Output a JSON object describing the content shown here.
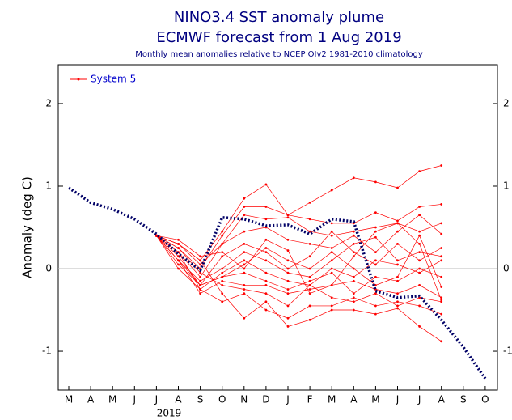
{
  "chart_data": {
    "type": "plume",
    "title": "NINO3.4 SST anomaly plume",
    "subtitle": "ECMWF forecast from 1 Aug 2019",
    "note": "Monthly mean anomalies relative to NCEP OIv2 1981-2010 climatology",
    "y_label": "Anomaly (deg C)",
    "year_label": "2019",
    "categories": [
      "M",
      "A",
      "M",
      "J",
      "J",
      "A",
      "S",
      "O",
      "N",
      "D",
      "J",
      "F",
      "M",
      "A",
      "M",
      "J",
      "J",
      "A",
      "S",
      "O"
    ],
    "ylim": [
      -1.47,
      2.47
    ],
    "yticks": [
      -1,
      0,
      1,
      2
    ],
    "legend": "top-left",
    "series": [
      {
        "color": "#000066",
        "values": [
          0.98,
          0.8,
          0.72,
          0.6,
          0.42,
          0.18,
          -0.02,
          0.62,
          0.6,
          0.52,
          0.53,
          0.42,
          0.6,
          0.57,
          -0.27,
          -0.35,
          -0.33,
          -0.62,
          -0.95,
          -1.33
        ]
      }
    ],
    "ensemble": {
      "name": "System 5",
      "color": "#ff0000",
      "members": [
        [
          null,
          null,
          null,
          null,
          0.4,
          0.3,
          0.1,
          0.45,
          0.85,
          1.02,
          0.65,
          0.8,
          0.95,
          1.1,
          1.05,
          0.98,
          1.18,
          1.25,
          null,
          null
        ],
        [
          null,
          null,
          null,
          null,
          0.4,
          0.25,
          0.0,
          0.4,
          0.75,
          0.75,
          0.65,
          0.6,
          0.55,
          0.55,
          0.68,
          0.58,
          0.75,
          0.78,
          null,
          null
        ],
        [
          null,
          null,
          null,
          null,
          0.4,
          0.2,
          -0.1,
          0.3,
          0.65,
          0.6,
          0.62,
          0.45,
          0.4,
          0.45,
          0.5,
          0.55,
          0.45,
          0.55,
          null,
          null
        ],
        [
          null,
          null,
          null,
          null,
          0.4,
          0.3,
          0.05,
          0.3,
          0.45,
          0.5,
          0.35,
          0.3,
          0.25,
          0.4,
          0.2,
          0.45,
          0.65,
          0.42,
          null,
          null
        ],
        [
          null,
          null,
          null,
          null,
          0.4,
          0.15,
          -0.2,
          0.15,
          0.3,
          0.2,
          0.0,
          0.15,
          0.45,
          0.2,
          0.05,
          0.3,
          0.1,
          0.25,
          null,
          null
        ],
        [
          null,
          null,
          null,
          null,
          0.4,
          0.1,
          -0.15,
          0.0,
          0.2,
          0.1,
          -0.05,
          -0.1,
          0.1,
          0.3,
          0.38,
          0.1,
          0.2,
          0.15,
          null,
          null
        ],
        [
          null,
          null,
          null,
          null,
          0.4,
          0.2,
          -0.25,
          -0.05,
          0.1,
          -0.05,
          -0.15,
          -0.2,
          0.0,
          -0.1,
          0.1,
          0.05,
          -0.05,
          0.1,
          null,
          null
        ],
        [
          null,
          null,
          null,
          null,
          0.4,
          0.05,
          -0.2,
          -0.1,
          -0.05,
          -0.15,
          -0.25,
          -0.15,
          -0.05,
          -0.3,
          -0.1,
          -0.15,
          0.0,
          -0.1,
          null,
          null
        ],
        [
          null,
          null,
          null,
          null,
          0.4,
          0.1,
          -0.3,
          -0.15,
          -0.2,
          -0.2,
          -0.3,
          -0.25,
          -0.2,
          -0.15,
          -0.25,
          -0.3,
          -0.2,
          -0.35,
          null,
          null
        ],
        [
          null,
          null,
          null,
          null,
          0.4,
          0.25,
          -0.05,
          -0.2,
          -0.25,
          -0.3,
          -0.45,
          -0.2,
          -0.35,
          -0.4,
          -0.3,
          -0.45,
          -0.35,
          -0.4,
          null,
          null
        ],
        [
          null,
          null,
          null,
          null,
          0.4,
          0.0,
          -0.25,
          -0.4,
          -0.3,
          -0.5,
          -0.6,
          -0.45,
          -0.45,
          -0.35,
          -0.45,
          -0.4,
          -0.45,
          -0.55,
          null,
          null
        ],
        [
          null,
          null,
          null,
          null,
          0.4,
          0.3,
          0.1,
          -0.3,
          -0.6,
          -0.4,
          -0.7,
          -0.62,
          -0.5,
          -0.5,
          -0.55,
          -0.48,
          -0.7,
          -0.88,
          null,
          null
        ],
        [
          null,
          null,
          null,
          null,
          0.4,
          0.35,
          0.15,
          0.2,
          0.0,
          0.35,
          0.22,
          -0.3,
          -0.2,
          0.15,
          0.45,
          0.55,
          0.3,
          -0.38,
          null,
          null
        ],
        [
          null,
          null,
          null,
          null,
          0.4,
          0.1,
          -0.2,
          -0.1,
          0.05,
          0.25,
          0.1,
          0.0,
          0.2,
          0.0,
          -0.2,
          -0.1,
          0.4,
          -0.22,
          null,
          null
        ]
      ]
    }
  }
}
